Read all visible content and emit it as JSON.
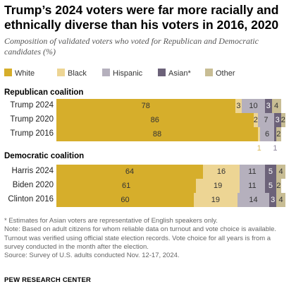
{
  "title": "Trump’s 2024 voters were far more racially and ethnically diverse than his voters in 2016, 2020",
  "subtitle": "Composition of validated voters who voted for Republican and Democratic candidates (%)",
  "colors": {
    "White": "#D6AE2B",
    "Black": "#EDD594",
    "Hispanic": "#B5B0BD",
    "Asian": "#6C6279",
    "Other": "#C8BD94"
  },
  "chart_data": {
    "type": "bar",
    "stacked": true,
    "orientation": "horizontal",
    "series_names": [
      "White",
      "Black",
      "Hispanic",
      "Asian",
      "Other"
    ],
    "legend_labels": [
      "White",
      "Black",
      "Hispanic",
      "Asian*",
      "Other"
    ],
    "legend_position": "top",
    "groups": [
      {
        "title": "Republican coalition",
        "rows": [
          {
            "label": "Trump 2024",
            "values": [
              78,
              3,
              10,
              3,
              4
            ],
            "value_labels": [
              "78",
              "3",
              "10",
              "3",
              "4"
            ]
          },
          {
            "label": "Trump 2020",
            "values": [
              86,
              2,
              7,
              3,
              2
            ],
            "value_labels": [
              "86",
              "2",
              "7",
              "3",
              "2"
            ]
          },
          {
            "label": "Trump 2016",
            "values": [
              88,
              1,
              6,
              1,
              2
            ],
            "value_labels": [
              "88",
              "",
              "6",
              "",
              "2"
            ],
            "below_labels": {
              "1": "1",
              "3": "1"
            }
          }
        ]
      },
      {
        "title": "Democratic coalition",
        "rows": [
          {
            "label": "Harris 2024",
            "values": [
              64,
              16,
              11,
              5,
              4
            ],
            "value_labels": [
              "64",
              "16",
              "11",
              "5",
              "4"
            ]
          },
          {
            "label": "Biden 2020",
            "values": [
              61,
              19,
              11,
              5,
              2
            ],
            "value_labels": [
              "61",
              "19",
              "11",
              "5",
              "2"
            ]
          },
          {
            "label": "Clinton 2016",
            "values": [
              60,
              19,
              14,
              3,
              4
            ],
            "value_labels": [
              "60",
              "19",
              "14",
              "3",
              "4"
            ]
          }
        ]
      }
    ]
  },
  "notes": [
    "* Estimates for Asian voters are representative of English speakers only.",
    "Note: Based on adult citizens for whom reliable data on turnout and vote choice is available.",
    "Turnout was verified using official state election records. Vote choice for all years is from a",
    "survey conducted in the month after the election.",
    "Source: Survey of U.S. adults conducted Nov. 12-17, 2024."
  ],
  "source_org": "PEW RESEARCH CENTER"
}
